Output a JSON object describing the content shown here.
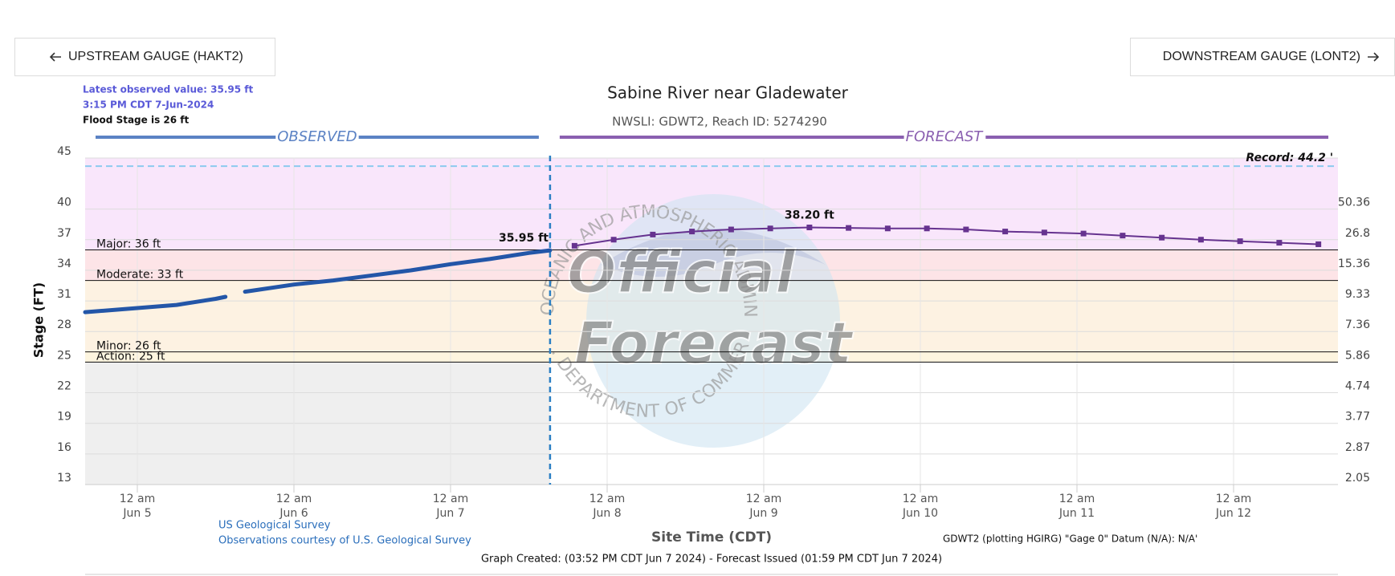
{
  "header": {
    "upstream_button": "UPSTREAM GAUGE (HAKT2)",
    "downstream_button": "DOWNSTREAM GAUGE (LONT2)"
  },
  "chart_data": {
    "type": "hydrograph",
    "title": "Sabine River near Gladewater",
    "subtitle": "NWSLI: GDWT2, Reach ID: 5274290",
    "info": [
      "Latest observed value: 35.95 ft",
      "3:15 PM CDT 7-Jun-2024",
      "Flood Stage is 26 ft"
    ],
    "y_label": "Stage (FT)",
    "x_label": "Site Time (CDT)",
    "xlim": [
      "2024-06-04 16:00",
      "2024-06-12 16:00"
    ],
    "xticks": [
      {
        "value": "2024-06-05 00:00",
        "label": "12 am",
        "date": "Jun 5"
      },
      {
        "value": "2024-06-06 00:00",
        "label": "12 am",
        "date": "Jun 6"
      },
      {
        "value": "2024-06-07 00:00",
        "label": "12 am",
        "date": "Jun 7"
      },
      {
        "value": "2024-06-08 00:00",
        "label": "12 am",
        "date": "Jun 8"
      },
      {
        "value": "2024-06-09 00:00",
        "label": "12 am",
        "date": "Jun 9"
      },
      {
        "value": "2024-06-10 00:00",
        "label": "12 am",
        "date": "Jun 10"
      },
      {
        "value": "2024-06-11 00:00",
        "label": "12 am",
        "date": "Jun 11"
      },
      {
        "value": "2024-06-12 00:00",
        "label": "12 am",
        "date": "Jun 12"
      }
    ],
    "ylim": [
      13,
      45
    ],
    "yticks": [
      13,
      16,
      19,
      22,
      25,
      28,
      31,
      34,
      37,
      40,
      45
    ],
    "y2_labels": [
      {
        "stage": 13,
        "flow": 2.05
      },
      {
        "stage": 16,
        "flow": 2.87
      },
      {
        "stage": 19,
        "flow": 3.77
      },
      {
        "stage": 22,
        "flow": 4.74
      },
      {
        "stage": 25,
        "flow": 5.86
      },
      {
        "stage": 28,
        "flow": 7.36
      },
      {
        "stage": 31,
        "flow": 9.33
      },
      {
        "stage": 34,
        "flow": 15.36
      },
      {
        "stage": 37,
        "flow": 26.8
      },
      {
        "stage": 40,
        "flow": 50.36
      }
    ],
    "grid": true,
    "series": [
      {
        "name": "OBSERVED",
        "color": "#2356a8",
        "header_color": "#5b82c4",
        "line_width": 5,
        "marker": null,
        "x": [
          "2024-06-04 16:00",
          "2024-06-05 00:00",
          "2024-06-05 06:00",
          "2024-06-05 12:00",
          "2024-06-05 13:30",
          "2024-06-05 15:00",
          "2024-06-05 16:30",
          "2024-06-06 00:00",
          "2024-06-06 06:00",
          "2024-06-06 12:00",
          "2024-06-06 18:00",
          "2024-06-07 00:00",
          "2024-06-07 06:00",
          "2024-06-07 12:00",
          "2024-06-07 15:15"
        ],
        "values": [
          29.9,
          30.3,
          30.6,
          31.2,
          31.4,
          null,
          31.9,
          32.6,
          33.0,
          33.5,
          34.0,
          34.6,
          35.1,
          35.7,
          35.95
        ],
        "value_labels": [
          null,
          null,
          null,
          null,
          null,
          null,
          null,
          null,
          null,
          null,
          null,
          null,
          null,
          null,
          "35.95 ft"
        ]
      },
      {
        "name": "FORECAST",
        "color": "#66338f",
        "header_color": "#8a5fb0",
        "line_width": 2,
        "marker": "square",
        "x": [
          "2024-06-07 19:00",
          "2024-06-08 01:00",
          "2024-06-08 07:00",
          "2024-06-08 13:00",
          "2024-06-08 19:00",
          "2024-06-09 01:00",
          "2024-06-09 07:00",
          "2024-06-09 13:00",
          "2024-06-09 19:00",
          "2024-06-10 01:00",
          "2024-06-10 07:00",
          "2024-06-10 13:00",
          "2024-06-10 19:00",
          "2024-06-11 01:00",
          "2024-06-11 07:00",
          "2024-06-11 13:00",
          "2024-06-11 19:00",
          "2024-06-12 01:00",
          "2024-06-12 07:00",
          "2024-06-12 13:00"
        ],
        "values": [
          36.4,
          37.0,
          37.5,
          37.8,
          38.0,
          38.1,
          38.2,
          38.15,
          38.1,
          38.1,
          38.0,
          37.8,
          37.7,
          37.6,
          37.4,
          37.2,
          37.0,
          36.85,
          36.7,
          36.55
        ],
        "value_labels": [
          null,
          null,
          null,
          null,
          null,
          null,
          "38.20 ft",
          null,
          null,
          null,
          null,
          null,
          null,
          null,
          null,
          null,
          null,
          null,
          null,
          null
        ]
      }
    ],
    "flood_categories": [
      {
        "label": "Action: 25 ft",
        "stage": 25,
        "color": "#fdf5df"
      },
      {
        "label": "Minor: 26 ft",
        "stage": 26,
        "color": "#fdf2e2"
      },
      {
        "label": "Moderate: 33 ft",
        "stage": 33,
        "color": "#fde4e7"
      },
      {
        "label": "Major: 36 ft",
        "stage": 36,
        "color": "#f9e6fb"
      }
    ],
    "record": {
      "label": "Record: 44.2 '",
      "value": 44.2,
      "color": "#8ccbef"
    },
    "observed_shade": "#efefef",
    "watermark": {
      "lines": [
        "Official",
        "Forecast"
      ],
      "ring_top": "NATIONAL OCEANIC AND ATMOSPHERIC ADMINISTRATION",
      "ring_bottom": "U.S. DEPARTMENT OF COMMERCE"
    },
    "credits": [
      "US Geological Survey",
      "Observations courtesy of U.S. Geological Survey"
    ],
    "datum_note": "GDWT2 (plotting HGIRG) \"Gage 0\" Datum (N/A): N/A'",
    "footer": "Graph Created: (03:52 PM CDT Jun 7 2024) - Forecast Issued (01:59 PM CDT Jun 7 2024)"
  }
}
